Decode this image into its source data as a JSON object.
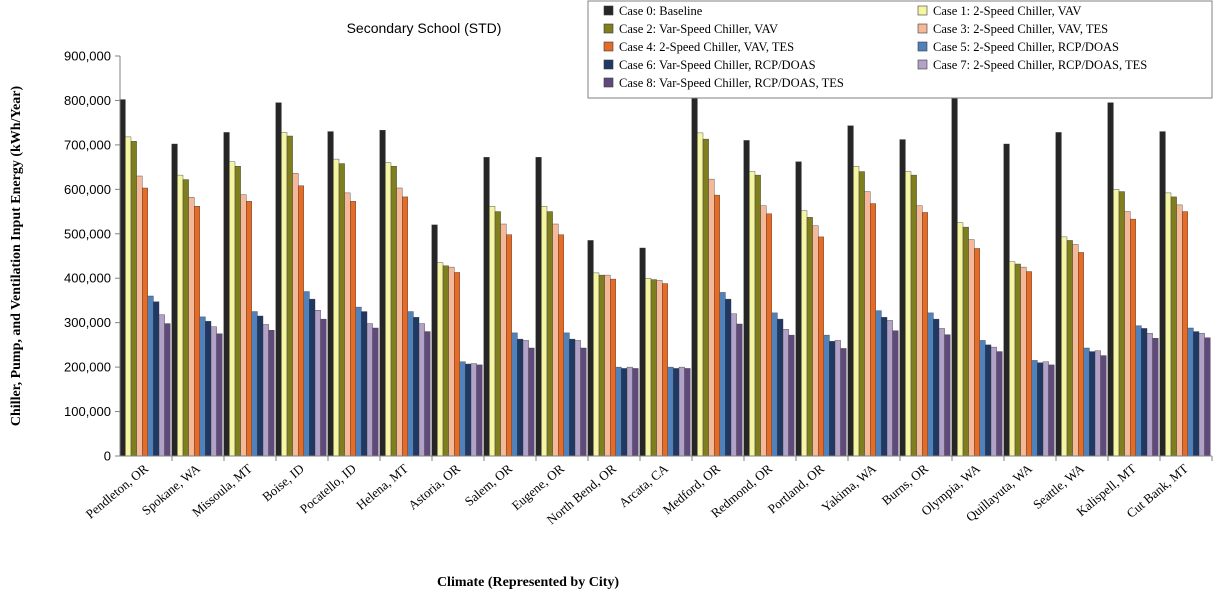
{
  "chart_data": {
    "type": "bar",
    "title": "Secondary School (STD)",
    "xlabel": "Climate (Represented by City)",
    "ylabel": "Chiller, Pump, and Ventilation Input Energy (kWh/Year)",
    "ylim": [
      0,
      900000
    ],
    "yticks": [
      "0",
      "100,000",
      "200,000",
      "300,000",
      "400,000",
      "500,000",
      "600,000",
      "700,000",
      "800,000",
      "900,000"
    ],
    "ytick_values": [
      0,
      100000,
      200000,
      300000,
      400000,
      500000,
      600000,
      700000,
      800000,
      900000
    ],
    "grid": false,
    "legend_position": "top-right",
    "categories": [
      "Pendleton, OR",
      "Spokane, WA",
      "Missoula, MT",
      "Boise, ID",
      "Pocatello, ID",
      "Helena, MT",
      "Astoria, OR",
      "Salem, OR",
      "Eugene, OR",
      "North Bend, OR",
      "Arcata, CA",
      "Medford, OR",
      "Redmond, OR",
      "Portland, OR",
      "Yakima, WA",
      "Burns, OR",
      "Olympia, WA",
      "Quillayuta, WA",
      "Seattle, WA",
      "Kalispell, MT",
      "Cut Bank, MT"
    ],
    "series": [
      {
        "name": "Case 0: Baseline",
        "color": "#262626",
        "values": [
          802000,
          702000,
          728000,
          795000,
          730000,
          733000,
          520000,
          672000,
          672000,
          485000,
          468000,
          805000,
          710000,
          662000,
          743000,
          712000,
          808000,
          702000,
          728000,
          795000,
          730000
        ]
      },
      {
        "name": "Case 1: 2-Speed Chiller, VAV",
        "color": "#F5F5A3",
        "values": [
          718000,
          632000,
          662000,
          728000,
          668000,
          660000,
          435000,
          562000,
          562000,
          412000,
          400000,
          727000,
          640000,
          552000,
          652000,
          640000,
          525000,
          437000,
          493000,
          600000,
          592000
        ]
      },
      {
        "name": "Case 2: Var-Speed Chiller, VAV",
        "color": "#7F7F1F",
        "values": [
          708000,
          622000,
          652000,
          720000,
          658000,
          652000,
          428000,
          550000,
          550000,
          407000,
          397000,
          713000,
          632000,
          537000,
          640000,
          632000,
          515000,
          432000,
          485000,
          595000,
          583000
        ]
      },
      {
        "name": "Case 3: 2-Speed Chiller, VAV, TES",
        "color": "#F5B99A",
        "values": [
          630000,
          582000,
          588000,
          636000,
          592000,
          603000,
          425000,
          522000,
          522000,
          407000,
          395000,
          623000,
          563000,
          518000,
          595000,
          563000,
          487000,
          425000,
          476000,
          550000,
          565000
        ]
      },
      {
        "name": "Case 4: 2-Speed Chiller, VAV, TES",
        "color": "#E46C26",
        "values": [
          603000,
          562000,
          573000,
          608000,
          573000,
          583000,
          413000,
          498000,
          498000,
          398000,
          388000,
          587000,
          545000,
          493000,
          568000,
          548000,
          467000,
          415000,
          458000,
          533000,
          550000
        ]
      },
      {
        "name": "Case 5: 2-Speed Chiller, RCP/DOAS",
        "color": "#4F81BD",
        "values": [
          360000,
          313000,
          325000,
          370000,
          335000,
          325000,
          212000,
          277000,
          277000,
          200000,
          200000,
          368000,
          322000,
          272000,
          327000,
          322000,
          260000,
          215000,
          243000,
          293000,
          288000
        ]
      },
      {
        "name": "Case 6: Var-Speed Chiller, RCP/DOAS",
        "color": "#1F3864",
        "values": [
          347000,
          303000,
          315000,
          353000,
          325000,
          312000,
          207000,
          263000,
          263000,
          197000,
          197000,
          353000,
          308000,
          258000,
          312000,
          308000,
          250000,
          210000,
          235000,
          287000,
          280000
        ]
      },
      {
        "name": "Case 7: 2-Speed Chiller, RCP/DOAS, TES",
        "color": "#B3A2C7",
        "values": [
          318000,
          291000,
          296000,
          328000,
          298000,
          298000,
          208000,
          260000,
          260000,
          200000,
          200000,
          320000,
          285000,
          260000,
          305000,
          287000,
          245000,
          212000,
          237000,
          276000,
          276000
        ]
      },
      {
        "name": "Case 8: Var-Speed Chiller, RCP/DOAS, TES",
        "color": "#604A7B",
        "values": [
          298000,
          275000,
          283000,
          308000,
          288000,
          280000,
          205000,
          243000,
          243000,
          197000,
          197000,
          297000,
          272000,
          242000,
          282000,
          273000,
          235000,
          205000,
          226000,
          265000,
          266000
        ]
      }
    ]
  }
}
